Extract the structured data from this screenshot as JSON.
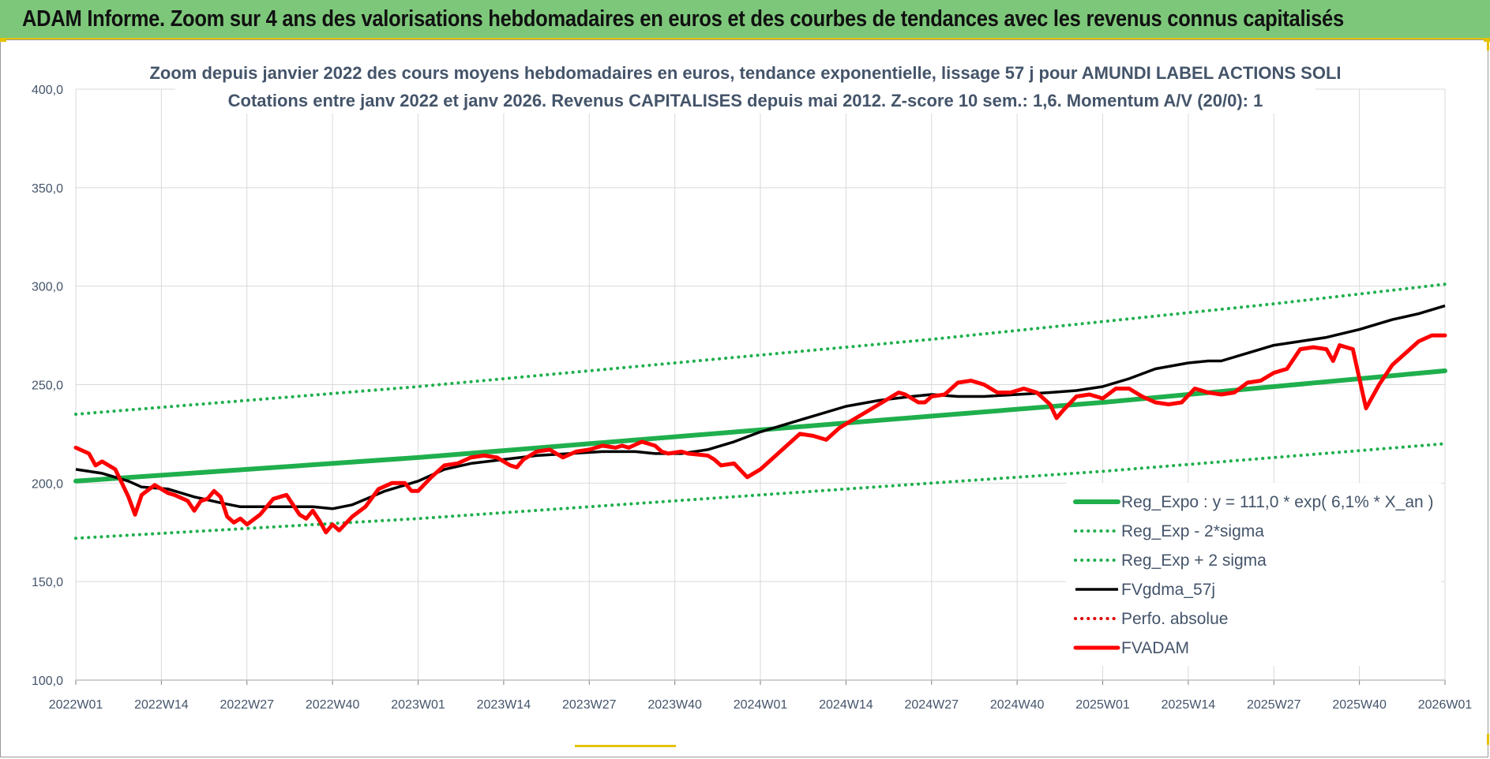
{
  "header": {
    "title": "ADAM Informe. Zoom sur 4 ans des valorisations hebdomadaires en euros et des courbes de tendances avec les revenus connus capitalisés"
  },
  "colors": {
    "banner_bg": "#7dc77a",
    "accent_yellow": "#e5c200",
    "trend_green": "#1faf4d",
    "sigma_green": "#1faf4d",
    "moving_avg": "#000000",
    "perf_absolute": "#e00000",
    "price_red": "#ff0000",
    "axis_text": "#44546a",
    "grid": "#d9d9d9"
  },
  "chart_data": {
    "type": "line",
    "title": "Zoom depuis janvier 2022 des cours moyens hebdomadaires en euros, tendance exponentielle, lissage 57 j pour AMUNDI LABEL ACTIONS SOLI",
    "subtitle": "Cotations entre janv 2022 et janv 2026. Revenus CAPITALISES depuis mai 2012. Z-score 10 sem.: 1,6. Momentum A/V (20/0): 1",
    "xlabel": "",
    "ylabel": "",
    "ylim": [
      100,
      400
    ],
    "yticks": [
      "100,0",
      "150,0",
      "200,0",
      "250,0",
      "300,0",
      "350,0",
      "400,0"
    ],
    "xlim": [
      0,
      208
    ],
    "xticks": [
      {
        "x": 0,
        "label": "2022W01"
      },
      {
        "x": 13,
        "label": "2022W14"
      },
      {
        "x": 26,
        "label": "2022W27"
      },
      {
        "x": 39,
        "label": "2022W40"
      },
      {
        "x": 52,
        "label": "2023W01"
      },
      {
        "x": 65,
        "label": "2023W14"
      },
      {
        "x": 78,
        "label": "2023W27"
      },
      {
        "x": 91,
        "label": "2023W40"
      },
      {
        "x": 104,
        "label": "2024W01"
      },
      {
        "x": 117,
        "label": "2024W14"
      },
      {
        "x": 130,
        "label": "2024W27"
      },
      {
        "x": 143,
        "label": "2024W40"
      },
      {
        "x": 156,
        "label": "2025W01"
      },
      {
        "x": 169,
        "label": "2025W14"
      },
      {
        "x": 182,
        "label": "2025W27"
      },
      {
        "x": 195,
        "label": "2025W40"
      },
      {
        "x": 208,
        "label": "2026W01"
      }
    ],
    "grid": true,
    "legend_position": "bottom-right",
    "series": [
      {
        "name": "Reg_Expo : y = 111,0 * exp( 6,1% *  X_an )",
        "style": "solid-thick",
        "color": "#1faf4d",
        "points": [
          [
            0,
            201
          ],
          [
            26,
            207
          ],
          [
            52,
            213
          ],
          [
            78,
            220
          ],
          [
            104,
            227
          ],
          [
            130,
            234
          ],
          [
            156,
            241
          ],
          [
            182,
            249
          ],
          [
            208,
            257
          ]
        ]
      },
      {
        "name": "Reg_Exp - 2*sigma",
        "style": "dotted",
        "color": "#1faf4d",
        "points": [
          [
            0,
            172
          ],
          [
            26,
            177
          ],
          [
            52,
            182
          ],
          [
            78,
            188
          ],
          [
            104,
            194
          ],
          [
            130,
            200
          ],
          [
            156,
            206
          ],
          [
            182,
            213
          ],
          [
            208,
            220
          ]
        ]
      },
      {
        "name": "Reg_Exp + 2 sigma",
        "style": "dotted",
        "color": "#1faf4d",
        "points": [
          [
            0,
            235
          ],
          [
            26,
            242
          ],
          [
            52,
            249
          ],
          [
            78,
            257
          ],
          [
            104,
            265
          ],
          [
            130,
            273
          ],
          [
            156,
            282
          ],
          [
            182,
            291
          ],
          [
            208,
            301
          ]
        ]
      },
      {
        "name": "FVgdma_57j",
        "style": "solid",
        "color": "#000000",
        "points": [
          [
            0,
            207
          ],
          [
            4,
            205
          ],
          [
            8,
            201
          ],
          [
            10,
            198
          ],
          [
            14,
            197
          ],
          [
            18,
            193
          ],
          [
            22,
            190
          ],
          [
            25,
            188
          ],
          [
            30,
            188
          ],
          [
            36,
            188
          ],
          [
            39,
            187
          ],
          [
            42,
            189
          ],
          [
            47,
            196
          ],
          [
            52,
            201
          ],
          [
            56,
            207
          ],
          [
            60,
            210
          ],
          [
            65,
            212
          ],
          [
            70,
            214
          ],
          [
            75,
            215
          ],
          [
            80,
            216
          ],
          [
            85,
            216
          ],
          [
            88,
            215
          ],
          [
            92,
            215
          ],
          [
            96,
            217
          ],
          [
            100,
            221
          ],
          [
            104,
            226
          ],
          [
            108,
            230
          ],
          [
            112,
            234
          ],
          [
            117,
            239
          ],
          [
            122,
            242
          ],
          [
            127,
            244
          ],
          [
            130,
            245
          ],
          [
            134,
            244
          ],
          [
            138,
            244
          ],
          [
            143,
            245
          ],
          [
            148,
            246
          ],
          [
            152,
            247
          ],
          [
            156,
            249
          ],
          [
            160,
            253
          ],
          [
            164,
            258
          ],
          [
            169,
            261
          ],
          [
            172,
            262
          ],
          [
            174,
            262
          ],
          [
            178,
            266
          ],
          [
            182,
            270
          ],
          [
            186,
            272
          ],
          [
            190,
            274
          ],
          [
            195,
            278
          ],
          [
            200,
            283
          ],
          [
            204,
            286
          ],
          [
            208,
            290
          ]
        ]
      },
      {
        "name": "Perfo. absolue",
        "style": "dotted",
        "color": "#e00000",
        "points": []
      },
      {
        "name": "FVADAM",
        "style": "solid-thick",
        "color": "#ff0000",
        "points": [
          [
            0,
            218
          ],
          [
            2,
            215
          ],
          [
            3,
            209
          ],
          [
            4,
            211
          ],
          [
            6,
            207
          ],
          [
            7,
            200
          ],
          [
            8,
            193
          ],
          [
            9,
            184
          ],
          [
            10,
            194
          ],
          [
            12,
            199
          ],
          [
            14,
            195
          ],
          [
            15,
            194
          ],
          [
            17,
            191
          ],
          [
            18,
            186
          ],
          [
            19,
            191
          ],
          [
            20,
            192
          ],
          [
            21,
            196
          ],
          [
            22,
            193
          ],
          [
            23,
            183
          ],
          [
            24,
            180
          ],
          [
            25,
            182
          ],
          [
            26,
            179
          ],
          [
            28,
            184
          ],
          [
            30,
            192
          ],
          [
            32,
            194
          ],
          [
            34,
            184
          ],
          [
            35,
            182
          ],
          [
            36,
            186
          ],
          [
            37,
            181
          ],
          [
            38,
            175
          ],
          [
            39,
            179
          ],
          [
            40,
            176
          ],
          [
            42,
            183
          ],
          [
            44,
            188
          ],
          [
            46,
            197
          ],
          [
            48,
            200
          ],
          [
            50,
            200
          ],
          [
            51,
            196
          ],
          [
            52,
            196
          ],
          [
            54,
            203
          ],
          [
            56,
            209
          ],
          [
            58,
            210
          ],
          [
            60,
            213
          ],
          [
            62,
            214
          ],
          [
            64,
            213
          ],
          [
            66,
            209
          ],
          [
            67,
            208
          ],
          [
            68,
            212
          ],
          [
            70,
            216
          ],
          [
            72,
            217
          ],
          [
            74,
            213
          ],
          [
            76,
            216
          ],
          [
            78,
            217
          ],
          [
            80,
            219
          ],
          [
            82,
            218
          ],
          [
            83,
            219
          ],
          [
            84,
            218
          ],
          [
            86,
            221
          ],
          [
            88,
            219
          ],
          [
            89,
            216
          ],
          [
            90,
            215
          ],
          [
            92,
            216
          ],
          [
            93,
            215
          ],
          [
            96,
            214
          ],
          [
            97,
            212
          ],
          [
            98,
            209
          ],
          [
            100,
            210
          ],
          [
            102,
            203
          ],
          [
            104,
            207
          ],
          [
            106,
            213
          ],
          [
            108,
            219
          ],
          [
            110,
            225
          ],
          [
            112,
            224
          ],
          [
            114,
            222
          ],
          [
            116,
            228
          ],
          [
            118,
            232
          ],
          [
            120,
            236
          ],
          [
            122,
            240
          ],
          [
            124,
            244
          ],
          [
            125,
            246
          ],
          [
            126,
            245
          ],
          [
            128,
            241
          ],
          [
            129,
            241
          ],
          [
            130,
            244
          ],
          [
            132,
            245
          ],
          [
            134,
            251
          ],
          [
            136,
            252
          ],
          [
            138,
            250
          ],
          [
            140,
            246
          ],
          [
            142,
            246
          ],
          [
            144,
            248
          ],
          [
            146,
            246
          ],
          [
            148,
            240
          ],
          [
            149,
            233
          ],
          [
            150,
            237
          ],
          [
            152,
            244
          ],
          [
            154,
            245
          ],
          [
            156,
            243
          ],
          [
            158,
            248
          ],
          [
            160,
            248
          ],
          [
            162,
            244
          ],
          [
            164,
            241
          ],
          [
            166,
            240
          ],
          [
            168,
            241
          ],
          [
            170,
            248
          ],
          [
            172,
            246
          ],
          [
            174,
            245
          ],
          [
            176,
            246
          ],
          [
            178,
            251
          ],
          [
            180,
            252
          ],
          [
            182,
            256
          ],
          [
            184,
            258
          ],
          [
            186,
            268
          ],
          [
            188,
            269
          ],
          [
            190,
            268
          ],
          [
            191,
            262
          ],
          [
            192,
            270
          ],
          [
            194,
            268
          ],
          [
            196,
            238
          ],
          [
            198,
            250
          ],
          [
            200,
            260
          ],
          [
            202,
            266
          ],
          [
            204,
            272
          ],
          [
            206,
            275
          ],
          [
            208,
            275
          ]
        ]
      }
    ]
  }
}
